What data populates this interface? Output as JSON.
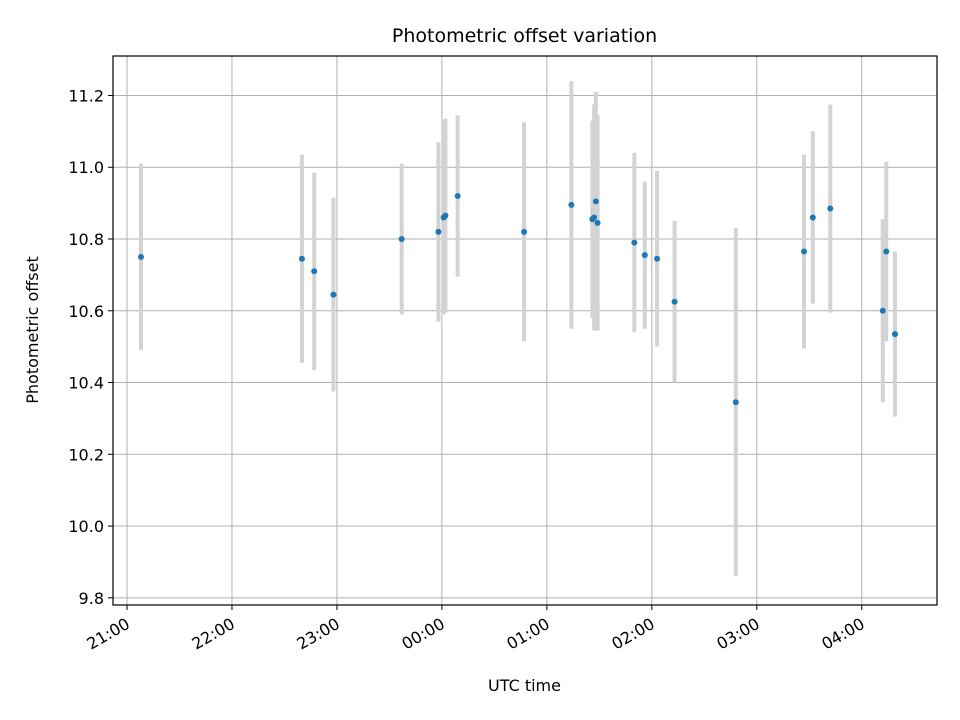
{
  "chart_data": {
    "type": "scatter",
    "title": "Photometric offset variation",
    "xlabel": "UTC time",
    "ylabel": "Photometric offset",
    "grid": true,
    "legend": "none",
    "x_unit": "UTC time of night",
    "xlim": [
      "20:52",
      "04:43"
    ],
    "ylim": [
      9.78,
      11.31
    ],
    "x_ticks": [
      "21:00",
      "22:00",
      "23:00",
      "00:00",
      "01:00",
      "02:00",
      "03:00",
      "04:00"
    ],
    "y_ticks": [
      9.8,
      10.0,
      10.2,
      10.4,
      10.6,
      10.8,
      11.0,
      11.2
    ],
    "colors": {
      "point": "#1f77b4",
      "errorbar": "#d3d3d3",
      "grid": "#b0b0b0"
    },
    "points": [
      {
        "x": "21:08",
        "y": 10.75,
        "err": 0.26
      },
      {
        "x": "22:40",
        "y": 10.745,
        "err": 0.29
      },
      {
        "x": "22:47",
        "y": 10.71,
        "err": 0.275
      },
      {
        "x": "22:58",
        "y": 10.645,
        "err": 0.27
      },
      {
        "x": "23:37",
        "y": 10.8,
        "err": 0.21
      },
      {
        "x": "23:58",
        "y": 10.82,
        "err": 0.25
      },
      {
        "x": "00:01",
        "y": 10.86,
        "err": 0.27
      },
      {
        "x": "00:02",
        "y": 10.865,
        "err": 0.27
      },
      {
        "x": "00:09",
        "y": 10.92,
        "err": 0.225
      },
      {
        "x": "00:47",
        "y": 10.82,
        "err": 0.305
      },
      {
        "x": "01:14",
        "y": 10.895,
        "err": 0.345
      },
      {
        "x": "01:26",
        "y": 10.855,
        "err": 0.275
      },
      {
        "x": "01:27",
        "y": 10.86,
        "err": 0.315
      },
      {
        "x": "01:28",
        "y": 10.905,
        "err": 0.305
      },
      {
        "x": "01:29",
        "y": 10.845,
        "err": 0.3
      },
      {
        "x": "01:50",
        "y": 10.79,
        "err": 0.25
      },
      {
        "x": "01:56",
        "y": 10.755,
        "err": 0.205
      },
      {
        "x": "02:03",
        "y": 10.745,
        "err": 0.245
      },
      {
        "x": "02:13",
        "y": 10.625,
        "err": 0.225
      },
      {
        "x": "02:48",
        "y": 10.345,
        "err": 0.485
      },
      {
        "x": "03:27",
        "y": 10.765,
        "err": 0.27
      },
      {
        "x": "03:32",
        "y": 10.86,
        "err": 0.24
      },
      {
        "x": "03:42",
        "y": 10.885,
        "err": 0.29
      },
      {
        "x": "04:12",
        "y": 10.6,
        "err": 0.255
      },
      {
        "x": "04:14",
        "y": 10.765,
        "err": 0.25
      },
      {
        "x": "04:19",
        "y": 10.535,
        "err": 0.23
      }
    ]
  }
}
